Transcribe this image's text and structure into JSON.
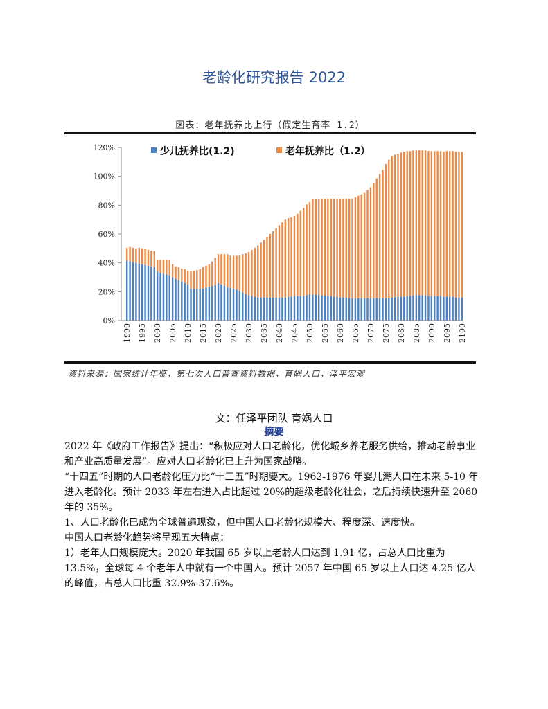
{
  "page": {
    "title": "老龄化研究报告 2022"
  },
  "figure": {
    "caption": "图表：老年抚养比上行（假定生育率 1.2）",
    "source": "资料来源：国家统计年鉴，第七次人口普查资料数据，育娲人口，泽平宏观"
  },
  "colors": {
    "youth": "#4a7fc1",
    "elderly": "#ec8a45",
    "axis": "#888888",
    "title": "#2e5597"
  },
  "chart_data": {
    "type": "bar",
    "stacked": true,
    "title": "",
    "xlabel": "",
    "ylabel": "",
    "ylim": [
      0,
      120
    ],
    "yticks": [
      0,
      20,
      40,
      60,
      80,
      100,
      120
    ],
    "ytick_labels": [
      "0%",
      "20%",
      "40%",
      "60%",
      "80%",
      "100%",
      "120%"
    ],
    "xtick_labels": [
      "1990",
      "1995",
      "2000",
      "2005",
      "2010",
      "2015",
      "2020",
      "2025",
      "2030",
      "2035",
      "2040",
      "2045",
      "2050",
      "2055",
      "2060",
      "2065",
      "2070",
      "2075",
      "2080",
      "2085",
      "2090",
      "2095",
      "2100"
    ],
    "x_start": 1990,
    "x_end": 2100,
    "legend_position": "top",
    "series": [
      {
        "name": "少儿抚养比(1.2)",
        "color": "#4a7fc1",
        "values": [
          41.5,
          41,
          40.5,
          40,
          39.5,
          39,
          38.5,
          38,
          37.5,
          37,
          34,
          33,
          32.5,
          32,
          31.5,
          30,
          29,
          28,
          27,
          26,
          25,
          22,
          22,
          22,
          22,
          22,
          23,
          23.5,
          24,
          24.5,
          26,
          25,
          24,
          23,
          22.5,
          22,
          21.5,
          20.5,
          19.5,
          18.5,
          17.5,
          17,
          16.5,
          16,
          16,
          16,
          16,
          16,
          16,
          16,
          16,
          16,
          16,
          16.5,
          16.5,
          17,
          17,
          17,
          17,
          17.5,
          18,
          18,
          18,
          17.5,
          17.5,
          17.5,
          17,
          17,
          16.5,
          16.5,
          16,
          16,
          16,
          15.5,
          15.5,
          15.5,
          15.5,
          15.5,
          15.5,
          15.5,
          15.5,
          15.5,
          15.5,
          15.5,
          15.5,
          15.5,
          15.5,
          16,
          16,
          16.5,
          16.5,
          16.5,
          17,
          17,
          17.5,
          17.5,
          17.5,
          17.5,
          17.5,
          17,
          17,
          17,
          17,
          17,
          16.5,
          16.5,
          16.5,
          16.5,
          16,
          16,
          16,
          16,
          16
        ]
      },
      {
        "name": "老年抚养比（1.2）",
        "color": "#ec8a45",
        "values": [
          9,
          10,
          10,
          10,
          11,
          11,
          11,
          11,
          11,
          11,
          8,
          9,
          9.5,
          10,
          10.5,
          9,
          8.5,
          9,
          9,
          9.5,
          9.5,
          12,
          12.5,
          13,
          13.5,
          15,
          15,
          15.5,
          17,
          19,
          20,
          21,
          22,
          23,
          22.5,
          23,
          23.5,
          25,
          26.5,
          28,
          30,
          32,
          34,
          36,
          38,
          40,
          42,
          44,
          46,
          48,
          50,
          52,
          54,
          54.5,
          55,
          55.5,
          57,
          59,
          61,
          63,
          64,
          66,
          66,
          66.5,
          67,
          67,
          67.5,
          67.5,
          68,
          68,
          68.5,
          68.5,
          68.5,
          69,
          69,
          70,
          71,
          72,
          73,
          75,
          77,
          80,
          83,
          86,
          89,
          93,
          96,
          98,
          99,
          99,
          100,
          100.5,
          100.5,
          100.5,
          100.5,
          100.5,
          100.5,
          100.5,
          100.5,
          100.5,
          100.5,
          100.5,
          100.5,
          100.5,
          100.5,
          101,
          101,
          101,
          101,
          101,
          101,
          101,
          101
        ]
      }
    ]
  },
  "article": {
    "author": "文：任泽平团队 育娲人口",
    "abstract_heading": "摘要",
    "paragraphs": [
      "2022 年《政府工作报告》提出：“积极应对人口老龄化，优化城乡养老服务供给，推动老龄事业和产业高质量发展”。应对人口老龄化已上升为国家战略。",
      "“十四五”时期的人口老龄化压力比“十三五”时期要大。1962-1976 年婴儿潮人口在未来 5-10 年进入老龄化。预计 2033 年左右进入占比超过 20%的超级老龄化社会，之后持续快速升至 2060 年的 35%。",
      "1、人口老龄化已成为全球普遍现象，但中国人口老龄化规模大、程度深、速度快。",
      "中国人口老龄化趋势将呈现五大特点：",
      "1）老年人口规模庞大。2020 年我国 65 岁以上老龄人口达到 1.91 亿，占总人口比重为 13.5%，全球每 4 个老年人中就有一个中国人。预计 2057 年中国 65 岁以上人口达 4.25 亿人的峰值，占总人口比重 32.9%-37.6%。"
    ]
  }
}
